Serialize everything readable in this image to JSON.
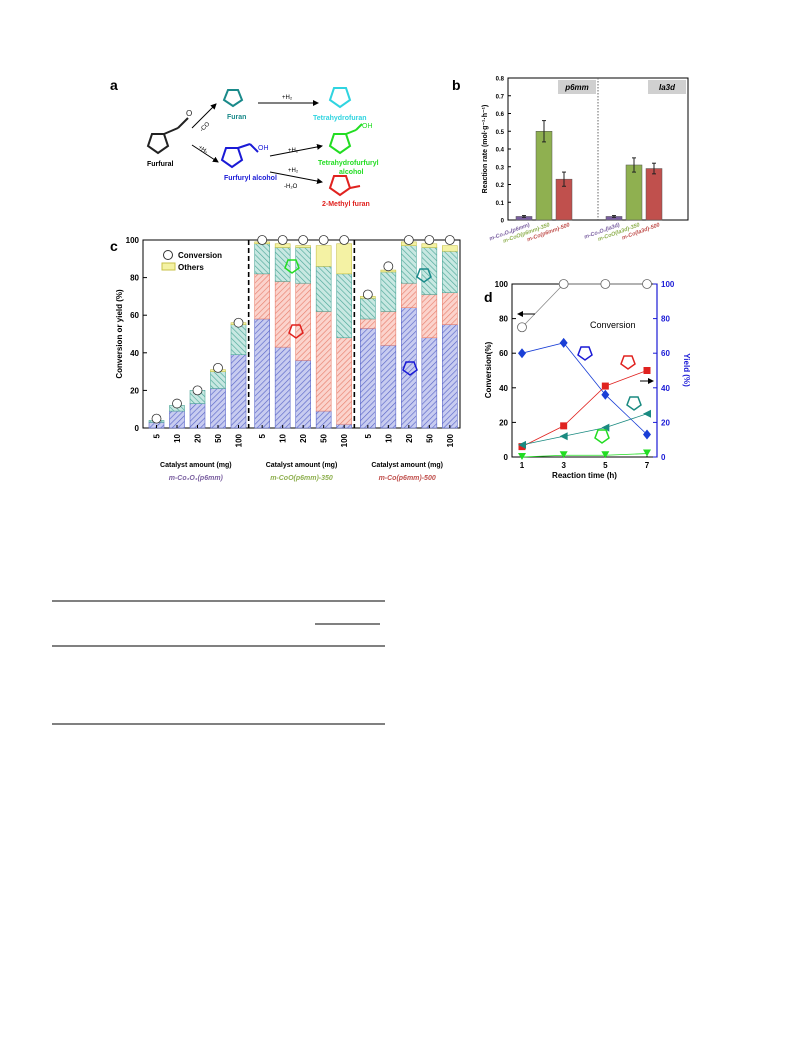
{
  "panel_labels": {
    "a": "a",
    "b": "b",
    "c": "c",
    "d": "d"
  },
  "scheme": {
    "furfural": "Furfural",
    "furan": "Furan",
    "thf": "Tetrahydrofuran",
    "fa": "Furfuryl alcohol",
    "thfa_1": "Tetrahydrofurfuryl",
    "thfa_2": "alcohol",
    "mf": "2-Methyl furan",
    "co": "-CO",
    "h2": "+H₂",
    "h2o": "-H₂O",
    "oh": "OH",
    "colors": {
      "furan": "#1a8a8a",
      "thf": "#2fd4e0",
      "fa": "#1a1ad6",
      "thfa": "#22dd22",
      "mf": "#e0221f",
      "furfural": "#222222"
    }
  },
  "chart_data": [
    {
      "id": "b",
      "type": "bar",
      "ylabel": "Reaction rate (mol·g⁻¹·h⁻¹)",
      "ylim": [
        0,
        0.8
      ],
      "yticks": [
        "0",
        "0.1",
        "0.2",
        "0.3",
        "0.4",
        "0.5",
        "0.6",
        "0.7",
        "0.8"
      ],
      "groups": [
        {
          "name": "p6mm",
          "categories": [
            "m-Co₃O₄(p6mm)",
            "m-CoO(p6mm)-350",
            "m-Co(p6mm)-500"
          ],
          "values": [
            0.02,
            0.5,
            0.23
          ],
          "errors": [
            0.005,
            0.06,
            0.04
          ]
        },
        {
          "name": "Ia3d",
          "categories": [
            "m-Co₃O₄(Ia3d)",
            "m-CoO(Ia3d)-350",
            "m-Co(Ia3d)-500"
          ],
          "values": [
            0.02,
            0.31,
            0.29
          ],
          "errors": [
            0.005,
            0.04,
            0.03
          ]
        }
      ],
      "bar_colors": [
        "#7a5fa0",
        "#8fb050",
        "#c0504d"
      ]
    },
    {
      "id": "c",
      "type": "bar",
      "stacked": true,
      "ylabel": "Conversion or yield (%)",
      "xlabel": "Catalyst amount (mg)",
      "ylim": [
        0,
        100
      ],
      "yticks": [
        "0",
        "20",
        "40",
        "60",
        "80",
        "100"
      ],
      "legend": {
        "conversion": "Conversion",
        "others": "Others"
      },
      "categories": [
        "5",
        "10",
        "20",
        "50",
        "100"
      ],
      "groups": [
        {
          "name": "m-Co₃O₄(p6mm)",
          "name_color": "#7a5fa0",
          "fa": [
            3,
            9,
            13,
            21,
            39
          ],
          "mf": [
            0,
            0,
            0,
            0,
            0
          ],
          "thfa": [
            1,
            3,
            7,
            9,
            16
          ],
          "others": [
            0,
            0,
            0,
            1,
            1
          ],
          "conversion": [
            5,
            13,
            20,
            32,
            56
          ]
        },
        {
          "name": "m-CoO(p6mm)-350",
          "name_color": "#8fb050",
          "fa": [
            58,
            43,
            36,
            9,
            2
          ],
          "mf": [
            24,
            35,
            41,
            53,
            46
          ],
          "thfa": [
            16,
            18,
            19,
            24,
            34
          ],
          "others": [
            1,
            2,
            1,
            11,
            16
          ],
          "conversion": [
            100,
            100,
            100,
            100,
            100
          ]
        },
        {
          "name": "m-Co(p6mm)-500",
          "name_color": "#c0504d",
          "fa": [
            53,
            44,
            64,
            48,
            55
          ],
          "mf": [
            5,
            18,
            13,
            23,
            17
          ],
          "thfa": [
            11,
            21,
            20,
            25,
            22
          ],
          "others": [
            1,
            1,
            2,
            2,
            3
          ],
          "conversion": [
            71,
            86,
            100,
            100,
            100
          ]
        }
      ],
      "colors": {
        "fa": "#5b67c9",
        "mf": "#e8806e",
        "thfa": "#4fa89a",
        "others": "#f4f2a4"
      }
    },
    {
      "id": "d",
      "type": "line",
      "xlabel": "Reaction time (h)",
      "ylabel": "Conversion(%)",
      "y2label": "Yield (%)",
      "ylim": [
        0,
        100
      ],
      "y2lim": [
        0,
        100
      ],
      "xticks": [
        "1",
        "3",
        "5",
        "7"
      ],
      "yticks": [
        "0",
        "20",
        "40",
        "60",
        "80",
        "100"
      ],
      "annotation": "Conversion",
      "x": [
        1,
        3,
        5,
        7
      ],
      "series": [
        {
          "key": "conversion",
          "marker": "circle",
          "color": "#888888",
          "values": [
            75,
            100,
            100,
            100
          ]
        },
        {
          "key": "fa",
          "marker": "diamond",
          "color": "#1a3fd6",
          "values": [
            60,
            66,
            36,
            13
          ]
        },
        {
          "key": "mf",
          "marker": "square",
          "color": "#e0221f",
          "values": [
            6,
            18,
            41,
            50
          ]
        },
        {
          "key": "thfa",
          "marker": "triangle-left",
          "color": "#1a8a80",
          "values": [
            7,
            12,
            17,
            25
          ]
        },
        {
          "key": "thf",
          "marker": "triangle-down",
          "color": "#22dd22",
          "values": [
            0,
            1,
            1,
            2
          ]
        }
      ]
    }
  ],
  "table": {
    "rows": 3
  }
}
